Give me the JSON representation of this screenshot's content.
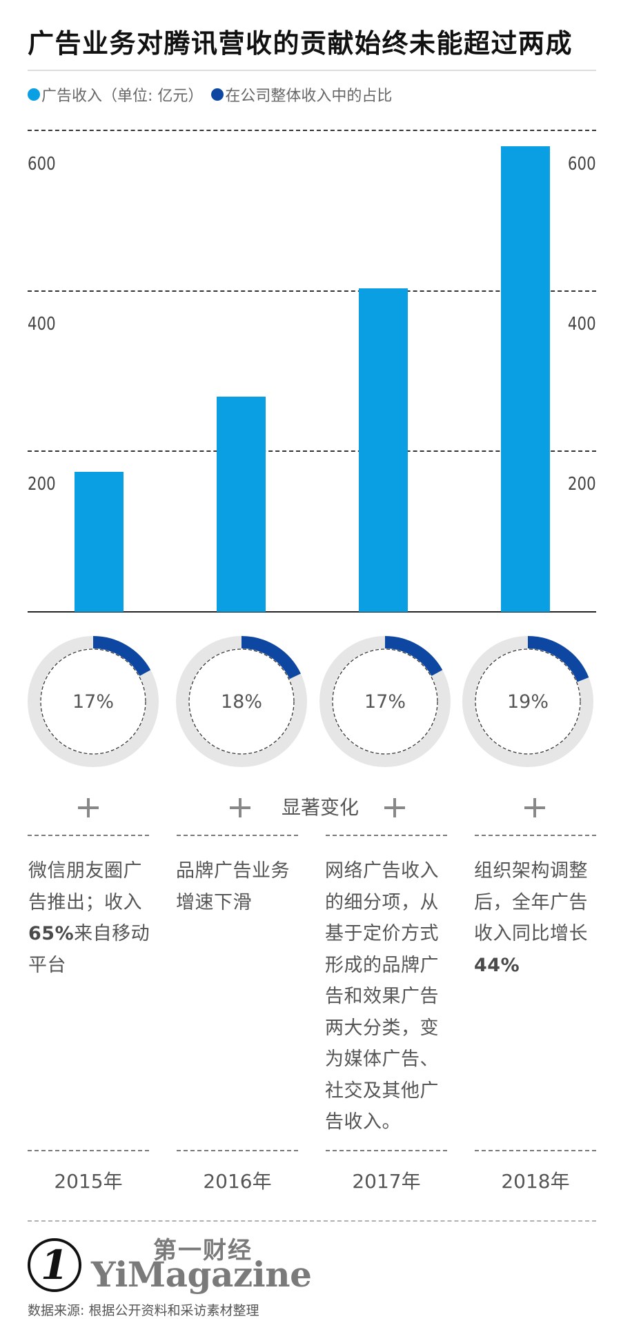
{
  "header": {
    "title": "广告业务对腾讯营收的贡献始终未能超过两成"
  },
  "legend": [
    {
      "label": "广告收入（单位: 亿元）",
      "color": "#0a9fe3"
    },
    {
      "label": "在公司整体收入中的占比",
      "color": "#0d47a1"
    }
  ],
  "axis": {
    "left_ticks": [
      "600",
      "400",
      "200"
    ],
    "right_ticks": [
      "600",
      "400",
      "200"
    ]
  },
  "donuts": [
    {
      "year": "2015年",
      "percent_label": "17%",
      "value": 17
    },
    {
      "year": "2016年",
      "percent_label": "18%",
      "value": 18
    },
    {
      "year": "2017年",
      "percent_label": "17%",
      "value": 17
    },
    {
      "year": "2018年",
      "percent_label": "19%",
      "value": 19
    }
  ],
  "changes": {
    "label": "显著变化",
    "notes": [
      {
        "pre": "微信朋友圈广告推出；收入",
        "bold": "65%",
        "post": "来自移动平台"
      },
      {
        "pre": "品牌广告业务增速下滑",
        "bold": "",
        "post": ""
      },
      {
        "pre": "网络广告收入的细分项，从基于定价方式形成的品牌广告和效果广告两大分类，变为媒体广告、社交及其他广告收入。",
        "bold": "",
        "post": ""
      },
      {
        "pre": "组织架构调整后，全年广告收入同比增长",
        "bold": "44%",
        "post": ""
      }
    ]
  },
  "years": [
    "2015年",
    "2016年",
    "2017年",
    "2018年"
  ],
  "footer": {
    "logo_mark": "1",
    "brand_cn": "第一财经",
    "brand_en": "YiMagazine",
    "source": "数据来源: 根据公开资料和采访素材整理"
  },
  "colors": {
    "bar": "#0a9fe3",
    "share_arc": "#0d47a1",
    "ring": "#e6e6e6"
  },
  "chart_data": [
    {
      "type": "bar",
      "title": "广告业务对腾讯营收的贡献始终未能超过两成",
      "xlabel": "",
      "ylabel": "广告收入（单位: 亿元）",
      "categories": [
        "2015年",
        "2016年",
        "2017年",
        "2018年"
      ],
      "values": [
        174,
        268,
        403,
        579
      ],
      "yticks": [
        200,
        400,
        600
      ],
      "ylim": [
        0,
        620
      ],
      "grid": true,
      "legend_position": "top-left"
    },
    {
      "type": "pie",
      "title": "在公司整体收入中的占比",
      "categories": [
        "2015年",
        "2016年",
        "2017年",
        "2018年"
      ],
      "values": [
        17,
        18,
        17,
        19
      ],
      "unit": "%"
    }
  ]
}
